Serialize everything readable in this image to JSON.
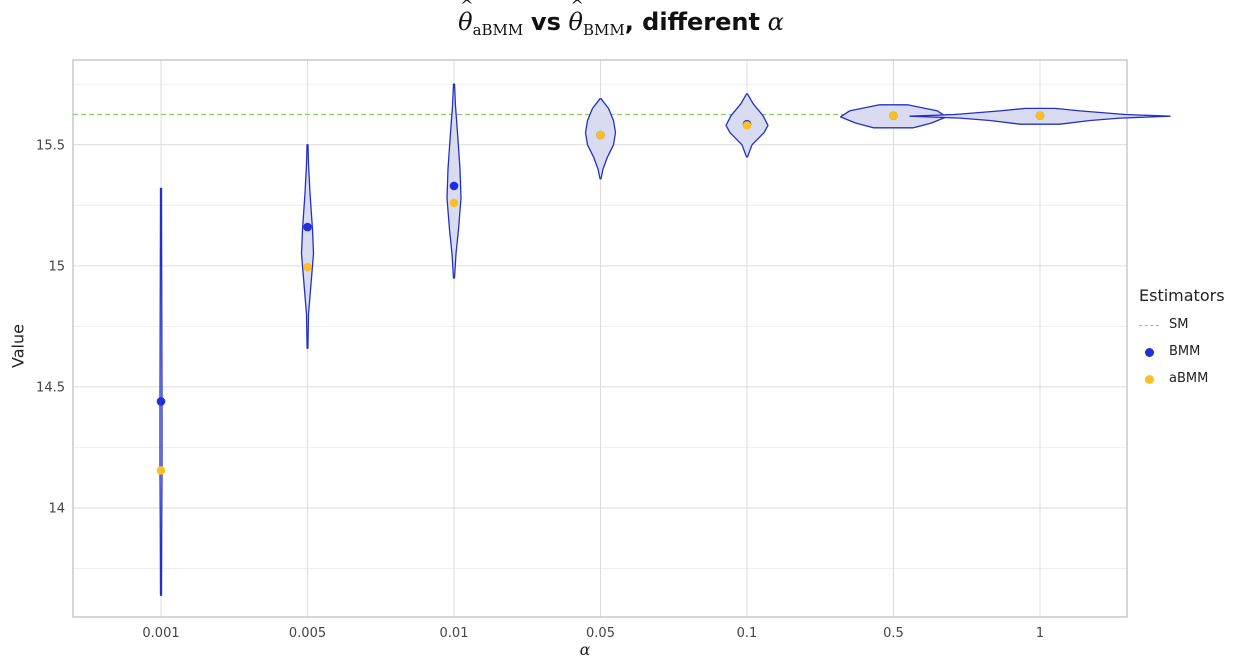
{
  "title": {
    "hat_a": "θ",
    "sub_a": "aBMM",
    "vs": "vs",
    "hat_b": "θ",
    "sub_b": "BMM",
    "tail": ", different",
    "alpha": "α"
  },
  "colors": {
    "bmm": "#1f2fdb",
    "abmm": "#fbbf24",
    "sm": "#8fcc5c",
    "violin_fill": "#d9dcf0",
    "violin_stroke": "#2230c9",
    "grid": "#dcdcdc"
  },
  "legend": {
    "title": "Estimators",
    "items": [
      {
        "label": "SM",
        "kind": "dashed-line",
        "color": "#8fcc5c"
      },
      {
        "label": "BMM",
        "kind": "point",
        "color": "#1f2fdb"
      },
      {
        "label": "aBMM",
        "kind": "point",
        "color": "#fbbf24"
      }
    ]
  },
  "chart_data": {
    "type": "violin",
    "title": "θ̂_aBMM vs θ̂_BMM, different α",
    "xlabel": "α",
    "ylabel": "Value",
    "categories": [
      "0.001",
      "0.005",
      "0.01",
      "0.05",
      "0.1",
      "0.5",
      "1"
    ],
    "ylim": [
      13.55,
      15.85
    ],
    "yticks": [
      14,
      14.5,
      15,
      15.5
    ],
    "ytick_labels": [
      "14",
      "14.5",
      "15",
      "15.5"
    ],
    "reference_line": {
      "name": "SM",
      "value": 15.625,
      "style": "dashed"
    },
    "grid": true,
    "legend_position": "right",
    "series": [
      {
        "name": "BMM",
        "type": "point",
        "values": [
          14.44,
          15.16,
          15.33,
          15.54,
          15.585,
          15.62,
          15.62
        ]
      },
      {
        "name": "aBMM",
        "type": "point",
        "values": [
          14.155,
          14.995,
          15.26,
          15.54,
          15.58,
          15.62,
          15.62
        ]
      }
    ],
    "violins": [
      {
        "category": "0.001",
        "min": 13.64,
        "max": 15.32,
        "profile": [
          [
            13.64,
            0.5
          ],
          [
            13.9,
            0.7
          ],
          [
            14.15,
            1.0
          ],
          [
            14.44,
            1.0
          ],
          [
            14.8,
            0.8
          ],
          [
            15.1,
            0.6
          ],
          [
            15.32,
            0.5
          ]
        ]
      },
      {
        "category": "0.005",
        "min": 14.66,
        "max": 15.5,
        "profile": [
          [
            14.66,
            0.4
          ],
          [
            14.8,
            1.0
          ],
          [
            14.95,
            4.0
          ],
          [
            15.05,
            6.0
          ],
          [
            15.15,
            5.0
          ],
          [
            15.3,
            2.5
          ],
          [
            15.42,
            1.0
          ],
          [
            15.5,
            0.5
          ]
        ]
      },
      {
        "category": "0.01",
        "min": 14.95,
        "max": 15.75,
        "profile": [
          [
            14.95,
            0.5
          ],
          [
            15.05,
            2.0
          ],
          [
            15.15,
            4.5
          ],
          [
            15.28,
            7.0
          ],
          [
            15.4,
            6.0
          ],
          [
            15.55,
            3.5
          ],
          [
            15.66,
            1.5
          ],
          [
            15.75,
            0.5
          ]
        ]
      },
      {
        "category": "0.05",
        "min": 15.36,
        "max": 15.69,
        "profile": [
          [
            15.36,
            0.5
          ],
          [
            15.4,
            2.5
          ],
          [
            15.45,
            7.0
          ],
          [
            15.5,
            13.0
          ],
          [
            15.55,
            15.0
          ],
          [
            15.6,
            13.0
          ],
          [
            15.65,
            8.0
          ],
          [
            15.69,
            0.5
          ]
        ]
      },
      {
        "category": "0.1",
        "min": 15.45,
        "max": 15.71,
        "profile": [
          [
            15.45,
            0.5
          ],
          [
            15.5,
            5.0
          ],
          [
            15.55,
            17.0
          ],
          [
            15.58,
            21.0
          ],
          [
            15.62,
            16.0
          ],
          [
            15.67,
            6.0
          ],
          [
            15.71,
            0.5
          ]
        ]
      },
      {
        "category": "0.5",
        "min": 15.57,
        "max": 15.665,
        "profile": [
          [
            15.57,
            20.0
          ],
          [
            15.59,
            38.0
          ],
          [
            15.615,
            53.0
          ],
          [
            15.64,
            44.0
          ],
          [
            15.665,
            14.0
          ]
        ]
      },
      {
        "category": "1",
        "min": 15.585,
        "max": 15.65,
        "profile": [
          [
            15.585,
            20.0
          ],
          [
            15.6,
            50.0
          ],
          [
            15.61,
            80.0
          ],
          [
            15.618,
            130.0
          ],
          [
            15.625,
            85.0
          ],
          [
            15.64,
            40.0
          ],
          [
            15.65,
            15.0
          ]
        ]
      }
    ]
  }
}
